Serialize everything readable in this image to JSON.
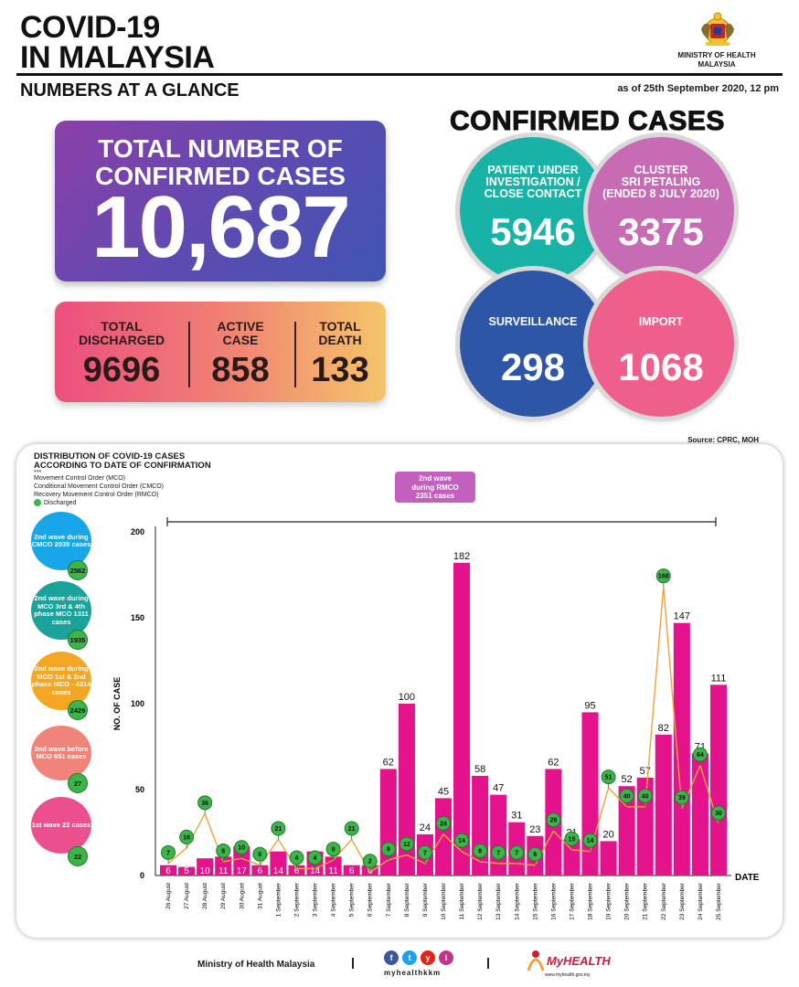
{
  "header": {
    "title_line1": "COVID-19",
    "title_line2": "IN MALAYSIA",
    "subtitle": "NUMBERS AT A GLANCE",
    "as_of": "as of 25th September 2020, 12 pm",
    "ministry_line1": "MINISTRY OF HEALTH",
    "ministry_line2": "MALAYSIA"
  },
  "total": {
    "title_line1": "TOTAL NUMBER OF",
    "title_line2": "CONFIRMED CASES",
    "value": "10,687"
  },
  "stats": {
    "discharged_label1": "TOTAL",
    "discharged_label2": "DISCHARGED",
    "discharged_value": "9696",
    "active_label1": "ACTIVE",
    "active_label2": "CASE",
    "active_value": "858",
    "death_label1": "TOTAL",
    "death_label2": "DEATH",
    "death_value": "133"
  },
  "confirmed": {
    "title": "CONFIRMED CASES",
    "pui_label1": "PATIENT UNDER",
    "pui_label2": "INVESTIGATION /",
    "pui_label3": "CLOSE CONTACT",
    "pui_value": "5946",
    "cluster_label1": "CLUSTER",
    "cluster_label2": "SRI PETALING",
    "cluster_label3": "(ENDED 8 JULY 2020)",
    "cluster_value": "3375",
    "surveillance_label": "SURVEILLANCE",
    "surveillance_value": "298",
    "import_label": "IMPORT",
    "import_value": "1068",
    "colors": {
      "pui": "#18b3a6",
      "cluster": "#c66bb4",
      "surveillance": "#2e56a7",
      "import": "#ef5f8c"
    }
  },
  "source": "Source: CPRC, MOH",
  "distribution": {
    "title_line1": "DISTRIBUTION OF COVID-19 CASES",
    "title_line2": "ACCORDING TO DATE OF CONFIRMATION",
    "stars": "***",
    "legend1": "Movement Control Order (MCO)",
    "legend2": "Conditional Movement Control Order (CMCO)",
    "legend3": "Recovery Movement Control Order (RMCO)",
    "legend_discharged": "Discharged",
    "rmco_label_line1": "2nd wave",
    "rmco_label_line2": "during RMCO",
    "rmco_label_line3": "2351 cases",
    "waves": [
      {
        "text": "2nd wave during CMCO 2038 cases",
        "discharged": "2562",
        "color": "#19a6e8"
      },
      {
        "text": "2nd wave during MCO 3rd & 4th phase MCO 1311 cases",
        "discharged": "1935",
        "color": "#1ba29b"
      },
      {
        "text": "2nd wave during MCO 1st & 2nd phase MCO - 4314 cases",
        "discharged": "2429",
        "color": "#f5a623"
      },
      {
        "text": "2nd wave before MCO 651 cases",
        "discharged": "27",
        "color": "#f0837a"
      },
      {
        "text": "1st wave 22 cases",
        "discharged": "22",
        "color": "#ec4f8e"
      }
    ]
  },
  "chart_data": {
    "type": "bar",
    "ylabel": "NO. OF CASE",
    "xlabel": "DATE",
    "ylim": [
      0,
      200
    ],
    "yticks": [
      "0",
      "50",
      "100",
      "150",
      "200"
    ],
    "categories": [
      "26 August",
      "27 August",
      "28 August",
      "29 August",
      "30 August",
      "31 August",
      "1 September",
      "2 September",
      "3 September",
      "4 September",
      "5 September",
      "6 September",
      "7 September",
      "8 September",
      "9 September",
      "10 September",
      "11 September",
      "12 September",
      "13 September",
      "14 September",
      "15 September",
      "16 September",
      "17 September",
      "18 September",
      "19 September",
      "20 September",
      "21 September",
      "22 September",
      "23 September",
      "24 September",
      "25 September"
    ],
    "series": [
      {
        "values": [
          6,
          5,
          10,
          11,
          17,
          6,
          14,
          6,
          14,
          11,
          6,
          6,
          62,
          100,
          24,
          45,
          182,
          58,
          47,
          31,
          23,
          62,
          21,
          95,
          20,
          52,
          57,
          82,
          147,
          71,
          111
        ],
        "color": "#e4138c"
      },
      {
        "name": "Discharged",
        "values": [
          7,
          16,
          36,
          8,
          10,
          6,
          21,
          4,
          4,
          9,
          21,
          2,
          9,
          12,
          7,
          24,
          14,
          8,
          7,
          7,
          6,
          26,
          15,
          14,
          51,
          40,
          40,
          168,
          39,
          64,
          30
        ],
        "color": "#3bb54a",
        "line_color": "#f0a23a"
      }
    ]
  },
  "footer": {
    "ministry": "Ministry of Health Malaysia",
    "handle": "myhealthkkm",
    "myhealth": "MyHEALTH",
    "myhealth_url": "www.myhealth.gov.my",
    "social": [
      "f",
      "t",
      "y",
      "i"
    ]
  }
}
